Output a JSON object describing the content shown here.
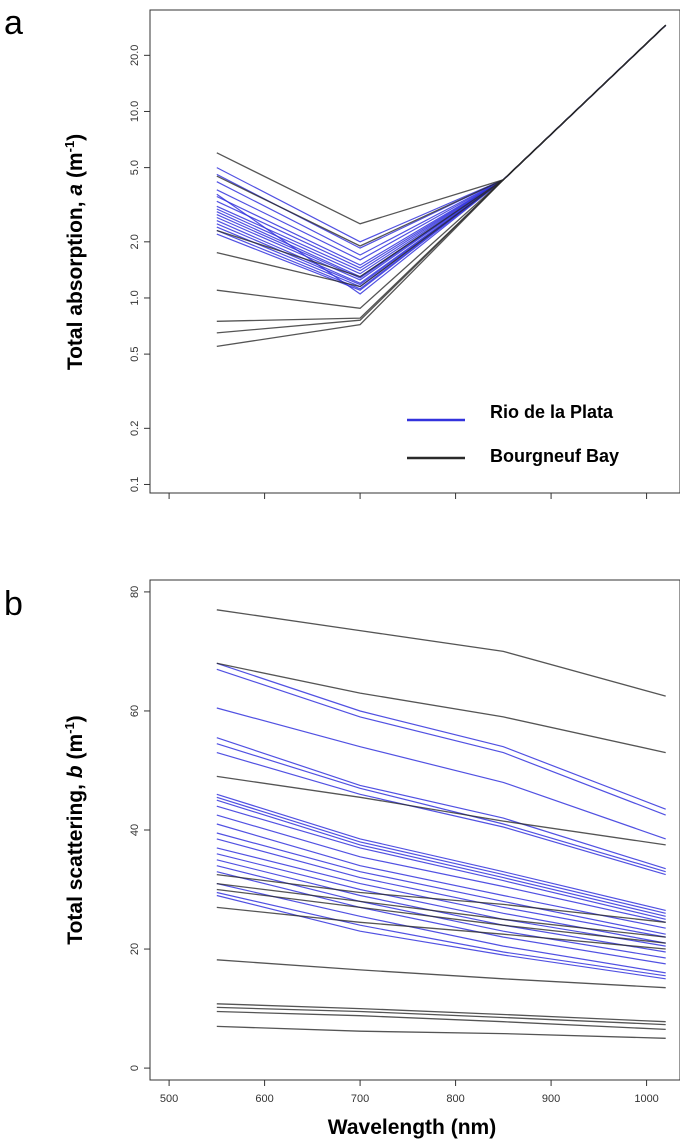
{
  "figure": {
    "panel_a_label": "a",
    "panel_b_label": "b",
    "shared_xlabel": "Wavelength (nm)"
  },
  "colors": {
    "rio": "#3333dd",
    "bourgneuf": "#2a2a2a"
  },
  "chart_data": [
    {
      "type": "line",
      "panel": "a",
      "title": "",
      "xlabel": "Wavelength (nm)",
      "ylabel_text": "Total absorption, ",
      "ylabel_var": "a",
      "ylabel_unit": " (m",
      "ylabel_exp": "-1",
      "ylabel_close": ")",
      "yscale": "log",
      "xlim": [
        480,
        1035
      ],
      "ylim": [
        0.09,
        35
      ],
      "yticks": [
        0.1,
        0.2,
        0.5,
        1.0,
        2.0,
        5.0,
        10.0,
        20.0
      ],
      "ytick_labels": [
        "0.1",
        "0.2",
        "0.5",
        "1.0",
        "2.0",
        "5.0",
        "10.0",
        "20.0"
      ],
      "x_axis_ticks_only": true,
      "xticks": [
        500,
        600,
        700,
        800,
        900,
        1000
      ],
      "legend": {
        "position": "bottom-right",
        "entries": [
          {
            "label": "Rio de la Plata",
            "color": "#3333dd"
          },
          {
            "label": "Bourgneuf Bay",
            "color": "#2a2a2a"
          }
        ]
      },
      "x": [
        550,
        700,
        850,
        1020
      ],
      "series": [
        {
          "group": "Rio de la Plata",
          "values": [
            5.0,
            2.0,
            4.3,
            29
          ]
        },
        {
          "group": "Rio de la Plata",
          "values": [
            4.6,
            1.85,
            4.3,
            29
          ]
        },
        {
          "group": "Rio de la Plata",
          "values": [
            4.2,
            1.7,
            4.3,
            29
          ]
        },
        {
          "group": "Rio de la Plata",
          "values": [
            3.8,
            1.6,
            4.3,
            29
          ]
        },
        {
          "group": "Rio de la Plata",
          "values": [
            3.5,
            1.5,
            4.3,
            29
          ]
        },
        {
          "group": "Rio de la Plata",
          "values": [
            3.3,
            1.45,
            4.3,
            29
          ]
        },
        {
          "group": "Rio de la Plata",
          "values": [
            3.1,
            1.4,
            4.3,
            29
          ]
        },
        {
          "group": "Rio de la Plata",
          "values": [
            3.0,
            1.35,
            4.3,
            29
          ]
        },
        {
          "group": "Rio de la Plata",
          "values": [
            2.9,
            1.3,
            4.3,
            29
          ]
        },
        {
          "group": "Rio de la Plata",
          "values": [
            2.8,
            1.28,
            4.3,
            29
          ]
        },
        {
          "group": "Rio de la Plata",
          "values": [
            2.7,
            1.25,
            4.3,
            29
          ]
        },
        {
          "group": "Rio de la Plata",
          "values": [
            2.6,
            1.2,
            4.3,
            29
          ]
        },
        {
          "group": "Rio de la Plata",
          "values": [
            2.5,
            1.18,
            4.3,
            29
          ]
        },
        {
          "group": "Rio de la Plata",
          "values": [
            2.4,
            1.15,
            4.3,
            29
          ]
        },
        {
          "group": "Rio de la Plata",
          "values": [
            2.3,
            1.12,
            4.3,
            29
          ]
        },
        {
          "group": "Rio de la Plata",
          "values": [
            2.2,
            1.1,
            4.3,
            29
          ]
        },
        {
          "group": "Rio de la Plata",
          "values": [
            3.6,
            1.05,
            4.3,
            29
          ]
        },
        {
          "group": "Bourgneuf Bay",
          "values": [
            6.0,
            2.5,
            4.3,
            29
          ]
        },
        {
          "group": "Bourgneuf Bay",
          "values": [
            4.5,
            1.9,
            4.3,
            29
          ]
        },
        {
          "group": "Bourgneuf Bay",
          "values": [
            2.3,
            1.3,
            4.3,
            29
          ]
        },
        {
          "group": "Bourgneuf Bay",
          "values": [
            1.75,
            1.15,
            4.3,
            29
          ]
        },
        {
          "group": "Bourgneuf Bay",
          "values": [
            1.1,
            0.88,
            4.3,
            29
          ]
        },
        {
          "group": "Bourgneuf Bay",
          "values": [
            0.75,
            0.78,
            4.3,
            29
          ]
        },
        {
          "group": "Bourgneuf Bay",
          "values": [
            0.65,
            0.76,
            4.3,
            29
          ]
        },
        {
          "group": "Bourgneuf Bay",
          "values": [
            0.55,
            0.72,
            4.3,
            29
          ]
        }
      ]
    },
    {
      "type": "line",
      "panel": "b",
      "title": "",
      "xlabel": "Wavelength (nm)",
      "ylabel_text": "Total scattering, ",
      "ylabel_var": "b",
      "ylabel_unit": " (m",
      "ylabel_exp": "-1",
      "ylabel_close": ")",
      "yscale": "linear",
      "xlim": [
        480,
        1035
      ],
      "ylim": [
        -2,
        82
      ],
      "yticks": [
        0,
        20,
        40,
        60,
        80
      ],
      "ytick_labels": [
        "0",
        "20",
        "40",
        "60",
        "80"
      ],
      "xticks": [
        500,
        600,
        700,
        800,
        900,
        1000
      ],
      "xtick_labels": [
        "500",
        "600",
        "700",
        "800",
        "900",
        "1000"
      ],
      "x": [
        550,
        700,
        850,
        1020
      ],
      "series": [
        {
          "group": "Rio de la Plata",
          "values": [
            68,
            60,
            54,
            43.5
          ]
        },
        {
          "group": "Rio de la Plata",
          "values": [
            67,
            59,
            53,
            42.5
          ]
        },
        {
          "group": "Rio de la Plata",
          "values": [
            60.5,
            54,
            48,
            38.5
          ]
        },
        {
          "group": "Rio de la Plata",
          "values": [
            55.5,
            47.5,
            42,
            33.5
          ]
        },
        {
          "group": "Rio de la Plata",
          "values": [
            54.5,
            47,
            41,
            33
          ]
        },
        {
          "group": "Rio de la Plata",
          "values": [
            53,
            46,
            40.5,
            32.5
          ]
        },
        {
          "group": "Rio de la Plata",
          "values": [
            46,
            38.5,
            33,
            26.5
          ]
        },
        {
          "group": "Rio de la Plata",
          "values": [
            45.5,
            38,
            32.5,
            26
          ]
        },
        {
          "group": "Rio de la Plata",
          "values": [
            45,
            37.5,
            32,
            25.5
          ]
        },
        {
          "group": "Rio de la Plata",
          "values": [
            44,
            37,
            31.5,
            25
          ]
        },
        {
          "group": "Rio de la Plata",
          "values": [
            42.5,
            35.5,
            30.5,
            24.5
          ]
        },
        {
          "group": "Rio de la Plata",
          "values": [
            41,
            34,
            29,
            23.5
          ]
        },
        {
          "group": "Rio de la Plata",
          "values": [
            39.5,
            33,
            28,
            22.5
          ]
        },
        {
          "group": "Rio de la Plata",
          "values": [
            38.5,
            32,
            27,
            22
          ]
        },
        {
          "group": "Rio de la Plata",
          "values": [
            37,
            31,
            26,
            21
          ]
        },
        {
          "group": "Rio de la Plata",
          "values": [
            36,
            30,
            25,
            20.5
          ]
        },
        {
          "group": "Rio de la Plata",
          "values": [
            35,
            29,
            24,
            19.5
          ]
        },
        {
          "group": "Rio de la Plata",
          "values": [
            34,
            28,
            23,
            18.5
          ]
        },
        {
          "group": "Rio de la Plata",
          "values": [
            33,
            27,
            22,
            17.5
          ]
        },
        {
          "group": "Rio de la Plata",
          "values": [
            31,
            25.5,
            20.5,
            16
          ]
        },
        {
          "group": "Rio de la Plata",
          "values": [
            29.5,
            24,
            19.5,
            15.5
          ]
        },
        {
          "group": "Rio de la Plata",
          "values": [
            29,
            23,
            19,
            15
          ]
        },
        {
          "group": "Bourgneuf Bay",
          "values": [
            77,
            73.5,
            70,
            62.5
          ]
        },
        {
          "group": "Bourgneuf Bay",
          "values": [
            68,
            63,
            59,
            53
          ]
        },
        {
          "group": "Bourgneuf Bay",
          "values": [
            49,
            45.5,
            41.5,
            37.5
          ]
        },
        {
          "group": "Bourgneuf Bay",
          "values": [
            32.5,
            29.5,
            27.5,
            24.5
          ]
        },
        {
          "group": "Bourgneuf Bay",
          "values": [
            31,
            28,
            25,
            22
          ]
        },
        {
          "group": "Bourgneuf Bay",
          "values": [
            30,
            27,
            24,
            21
          ]
        },
        {
          "group": "Bourgneuf Bay",
          "values": [
            27,
            24.5,
            22.5,
            20
          ]
        },
        {
          "group": "Bourgneuf Bay",
          "values": [
            18.2,
            16.5,
            15,
            13.5
          ]
        },
        {
          "group": "Bourgneuf Bay",
          "values": [
            10.8,
            10,
            9,
            7.8
          ]
        },
        {
          "group": "Bourgneuf Bay",
          "values": [
            10.2,
            9.5,
            8.5,
            7.3
          ]
        },
        {
          "group": "Bourgneuf Bay",
          "values": [
            9.5,
            8.8,
            7.8,
            6.5
          ]
        },
        {
          "group": "Bourgneuf Bay",
          "values": [
            7,
            6.2,
            5.8,
            5
          ]
        }
      ]
    }
  ]
}
